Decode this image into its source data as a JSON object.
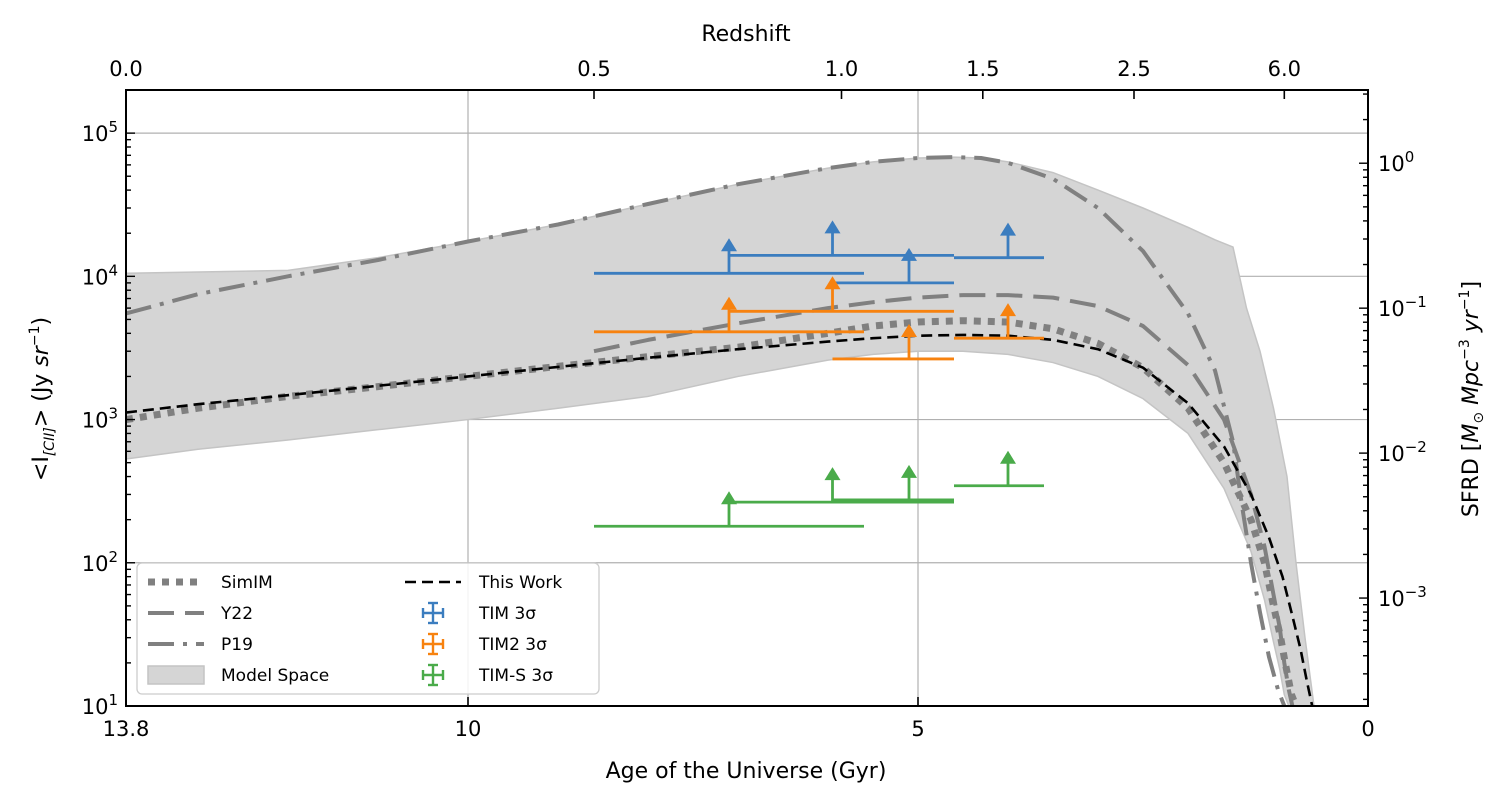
{
  "chart_data": {
    "type": "line",
    "title": "",
    "xlabel": "Age of the Universe (Gyr)",
    "x_top_label": "Redshift",
    "ylabel": "<I[CII]> (Jy sr⁻¹)",
    "ylabel_parts": [
      "<I",
      "[CII]",
      "> (Jy ",
      "sr",
      "−1",
      ")"
    ],
    "y2label": "SFRD [M⊙ Mpc⁻³ yr⁻¹]",
    "y2label_parts": [
      "SFRD [",
      "M",
      "⊙",
      " Mpc",
      "−3",
      " yr",
      "−1",
      "]"
    ],
    "xlim": [
      13.8,
      0
    ],
    "ylim": [
      10,
      200000
    ],
    "y_scale": "log",
    "y2lim": [
      0.00018,
      3.2
    ],
    "grid": true,
    "legend_position": "lower-left",
    "x_ticks": [
      {
        "value": 13.8,
        "label": "13.8"
      },
      {
        "value": 10,
        "label": "10"
      },
      {
        "value": 5,
        "label": "5"
      },
      {
        "value": 0,
        "label": "0"
      }
    ],
    "x_top_ticks": [
      {
        "age": 13.8,
        "label": "0.0"
      },
      {
        "age": 8.6,
        "label": "0.5"
      },
      {
        "age": 5.85,
        "label": "1.0"
      },
      {
        "age": 4.28,
        "label": "1.5"
      },
      {
        "age": 2.6,
        "label": "2.5"
      },
      {
        "age": 0.93,
        "label": "6.0"
      }
    ],
    "y_ticks": [
      {
        "value": 10,
        "base": "10",
        "exp": "1"
      },
      {
        "value": 100,
        "base": "10",
        "exp": "2"
      },
      {
        "value": 1000,
        "base": "10",
        "exp": "3"
      },
      {
        "value": 10000,
        "base": "10",
        "exp": "4"
      },
      {
        "value": 100000,
        "base": "10",
        "exp": "5"
      }
    ],
    "y2_ticks": [
      {
        "value": 0.001,
        "base": "10",
        "exp": "−3"
      },
      {
        "value": 0.01,
        "base": "10",
        "exp": "−2"
      },
      {
        "value": 0.1,
        "base": "10",
        "exp": "−1"
      },
      {
        "value": 1,
        "base": "10",
        "exp": "0"
      }
    ],
    "series": [
      {
        "name": "SimIM",
        "style": "dotted",
        "color": "#808080",
        "x": [
          13.8,
          13.0,
          12.0,
          11.0,
          10.0,
          9.0,
          8.0,
          7.0,
          6.0,
          5.5,
          5.0,
          4.5,
          4.0,
          3.5,
          3.0,
          2.5,
          2.0,
          1.6,
          1.3,
          1.15,
          1.05,
          0.97,
          0.92,
          0.85,
          0.8
        ],
        "y": [
          1000,
          1200,
          1450,
          1700,
          2000,
          2350,
          2750,
          3200,
          4000,
          4500,
          4800,
          4900,
          4800,
          4300,
          3400,
          2300,
          1200,
          500,
          200,
          100,
          50,
          30,
          20,
          12,
          10
        ]
      },
      {
        "name": "Y22",
        "style": "dashed",
        "color": "#808080",
        "x": [
          8.6,
          8.0,
          7.0,
          6.0,
          5.5,
          5.0,
          4.5,
          4.0,
          3.5,
          3.0,
          2.5,
          2.0,
          1.6,
          1.3,
          1.15,
          1.05,
          0.98,
          0.93,
          0.88,
          0.84
        ],
        "y": [
          3000,
          3600,
          4700,
          6000,
          6600,
          7100,
          7400,
          7400,
          7100,
          6200,
          4500,
          2400,
          1000,
          300,
          130,
          60,
          35,
          20,
          13,
          10
        ]
      },
      {
        "name": "P19",
        "style": "dashdot",
        "color": "#808080",
        "x": [
          13.8,
          13.0,
          12.0,
          11.0,
          10.0,
          9.0,
          8.0,
          7.0,
          6.0,
          5.5,
          5.0,
          4.6,
          4.3,
          4.0,
          3.5,
          3.0,
          2.5,
          2.0,
          1.7,
          1.5,
          1.4,
          1.3,
          1.2,
          1.1,
          1.0,
          0.93
        ],
        "y": [
          5500,
          7500,
          10000,
          13000,
          17500,
          23000,
          32000,
          44000,
          57000,
          63000,
          67000,
          68000,
          67000,
          62000,
          48000,
          30000,
          15000,
          5500,
          2200,
          700,
          250,
          100,
          45,
          22,
          13,
          10
        ]
      },
      {
        "name": "This Work",
        "style": "dashed",
        "color": "#000000",
        "x": [
          13.8,
          13.0,
          12.0,
          11.0,
          10.0,
          9.0,
          8.0,
          7.0,
          6.0,
          5.5,
          5.0,
          4.5,
          4.0,
          3.5,
          3.0,
          2.5,
          2.0,
          1.6,
          1.3,
          1.1,
          0.95,
          0.85,
          0.75,
          0.68,
          0.62
        ],
        "y": [
          1120,
          1280,
          1480,
          1720,
          2000,
          2330,
          2700,
          3100,
          3500,
          3700,
          3850,
          3900,
          3850,
          3600,
          3100,
          2300,
          1300,
          650,
          300,
          150,
          80,
          45,
          25,
          15,
          10
        ]
      }
    ],
    "band": {
      "name": "Model Space",
      "color": "#d5d5d5",
      "upper_x": [
        13.8,
        12.0,
        11.0,
        10.0,
        9.0,
        8.0,
        7.0,
        6.0,
        5.5,
        5.0,
        4.6,
        4.3,
        4.0,
        3.5,
        3.0,
        2.5,
        2.0,
        1.7,
        1.5,
        1.35,
        1.2,
        1.05,
        0.9,
        0.8,
        0.7,
        0.6
      ],
      "upper_y": [
        10500,
        11000,
        13500,
        17500,
        23000,
        32000,
        44000,
        57000,
        63000,
        67000,
        68000,
        67000,
        63000,
        53000,
        40000,
        30000,
        22000,
        18000,
        16000,
        6000,
        3000,
        1200,
        400,
        100,
        30,
        10
      ],
      "lower_x": [
        13.8,
        13.0,
        12.0,
        11.0,
        10.0,
        9.0,
        8.0,
        7.0,
        6.0,
        5.5,
        5.0,
        4.5,
        4.0,
        3.5,
        3.0,
        2.5,
        2.0,
        1.6,
        1.3,
        1.15,
        1.05,
        0.98,
        0.93,
        0.88
      ],
      "lower_y": [
        530,
        620,
        720,
        850,
        1000,
        1200,
        1450,
        2000,
        2600,
        2850,
        3000,
        3000,
        2850,
        2500,
        2000,
        1400,
        800,
        330,
        120,
        55,
        28,
        18,
        12,
        10
      ]
    },
    "lower_limits": [
      {
        "series": "TIM 3σ",
        "color": "#3b7dbf",
        "points": [
          {
            "x": 7.1,
            "xerr_lo": 8.6,
            "xerr_hi": 7.1,
            "x_lo": 8.6,
            "x_hi": 5.6,
            "y": 10500
          },
          {
            "x": 5.95,
            "x_lo": 7.1,
            "x_hi": 4.6,
            "y": 14000
          },
          {
            "x": 5.1,
            "x_lo": 5.95,
            "x_hi": 4.6,
            "y": 9000
          },
          {
            "x": 4.0,
            "x_lo": 4.6,
            "x_hi": 3.6,
            "y": 13500
          }
        ]
      },
      {
        "series": "TIM2 3σ",
        "color": "#f7820f",
        "points": [
          {
            "x": 7.1,
            "x_lo": 8.6,
            "x_hi": 5.6,
            "y": 4100
          },
          {
            "x": 5.95,
            "x_lo": 7.1,
            "x_hi": 4.6,
            "y": 5700
          },
          {
            "x": 5.1,
            "x_lo": 5.95,
            "x_hi": 4.6,
            "y": 2650
          },
          {
            "x": 4.0,
            "x_lo": 4.6,
            "x_hi": 3.6,
            "y": 3700
          }
        ]
      },
      {
        "series": "TIM-S 3σ",
        "color": "#4aab4a",
        "points": [
          {
            "x": 7.1,
            "x_lo": 8.6,
            "x_hi": 5.6,
            "y": 180
          },
          {
            "x": 5.95,
            "x_lo": 7.1,
            "x_hi": 4.6,
            "y": 265
          },
          {
            "x": 5.1,
            "x_lo": 5.95,
            "x_hi": 4.6,
            "y": 275
          },
          {
            "x": 4.0,
            "x_lo": 4.6,
            "x_hi": 3.6,
            "y": 345
          }
        ]
      }
    ],
    "legend": {
      "col1": [
        {
          "label": "SimIM",
          "kind": "dotted"
        },
        {
          "label": "Y22",
          "kind": "dashed"
        },
        {
          "label": "P19",
          "kind": "dashdot"
        },
        {
          "label": "Model Space",
          "kind": "patch"
        }
      ],
      "col2": [
        {
          "label": "This Work",
          "kind": "dashed-black"
        },
        {
          "label": "TIM 3σ",
          "kind": "errorbar",
          "color": "#3b7dbf"
        },
        {
          "label": "TIM2 3σ",
          "kind": "errorbar",
          "color": "#f7820f"
        },
        {
          "label": "TIM-S 3σ",
          "kind": "errorbar",
          "color": "#4aab4a"
        }
      ]
    }
  }
}
